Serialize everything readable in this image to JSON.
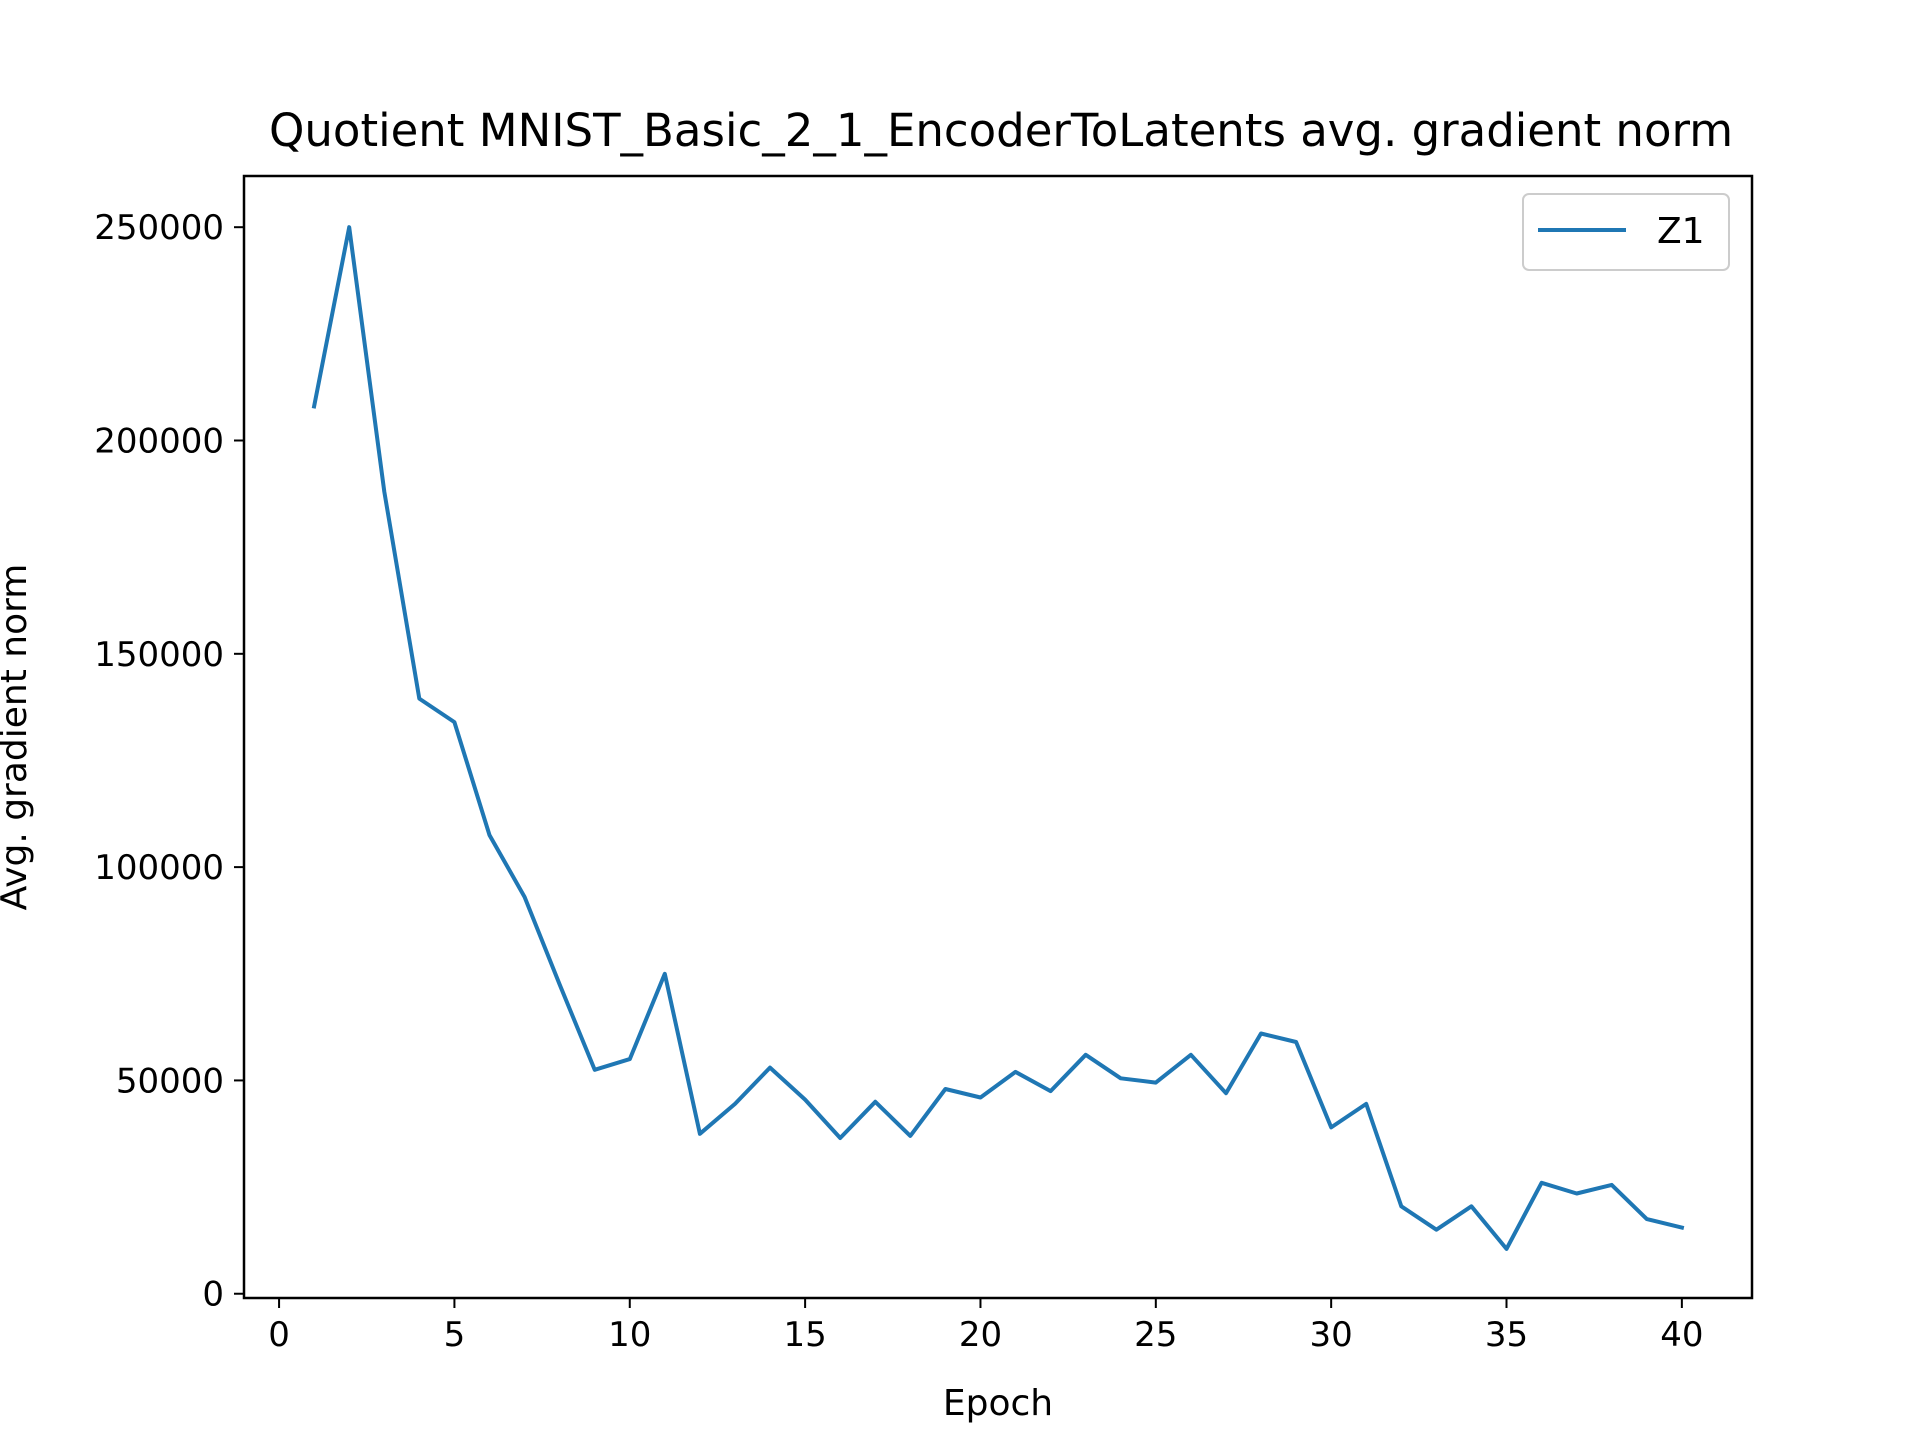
{
  "chart_data": {
    "type": "line",
    "title": "Quotient MNIST_Basic_2_1_EncoderToLatents avg. gradient norm",
    "xlabel": "Epoch",
    "ylabel": "Avg. gradient norm",
    "xlim": [
      -1,
      42
    ],
    "ylim": [
      -1000,
      262000
    ],
    "xticks": [
      0,
      5,
      10,
      15,
      20,
      25,
      30,
      35,
      40
    ],
    "xtick_labels": [
      "0",
      "5",
      "10",
      "15",
      "20",
      "25",
      "30",
      "35",
      "40"
    ],
    "yticks": [
      0,
      50000,
      100000,
      150000,
      200000,
      250000
    ],
    "ytick_labels": [
      "0",
      "50000",
      "100000",
      "150000",
      "200000",
      "250000"
    ],
    "grid": false,
    "legend_position": "top-right",
    "series": [
      {
        "name": "Z1",
        "color": "#1f77b4",
        "x": [
          1,
          2,
          3,
          4,
          5,
          6,
          7,
          8,
          9,
          10,
          11,
          12,
          13,
          14,
          15,
          16,
          17,
          18,
          19,
          20,
          21,
          22,
          23,
          24,
          25,
          26,
          27,
          28,
          29,
          30,
          31,
          32,
          33,
          34,
          35,
          36,
          37,
          38,
          39,
          40
        ],
        "values": [
          208000,
          250000,
          188000,
          139500,
          134000,
          107500,
          93000,
          72500,
          52500,
          55000,
          75000,
          37500,
          44500,
          53000,
          45500,
          36500,
          45000,
          37000,
          48000,
          46000,
          52000,
          47500,
          56000,
          50500,
          49500,
          56000,
          47000,
          61000,
          59000,
          39000,
          44500,
          20500,
          15000,
          20500,
          10500,
          26000,
          23500,
          25500,
          17500,
          15500
        ]
      }
    ]
  }
}
